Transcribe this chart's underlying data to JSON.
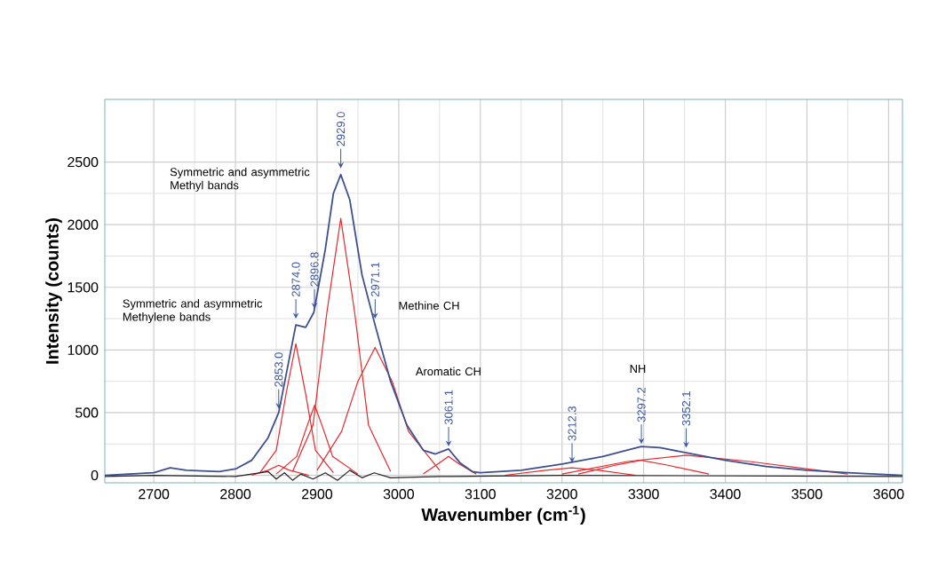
{
  "chart_data": {
    "type": "line",
    "xlabel": "Wavenumber (cm$^{-1}$)",
    "ylabel": "Intensity (counts)",
    "xlim": [
      2640,
      3617
    ],
    "ylim": [
      -60,
      3000
    ],
    "xticks": [
      2700,
      2800,
      2900,
      3000,
      3100,
      3200,
      3300,
      3400,
      3500,
      3600
    ],
    "yticks": [
      0,
      500,
      1000,
      1500,
      2000,
      2500
    ],
    "grid": true,
    "marker": "none",
    "line_style": "solid",
    "series": [
      {
        "color": "#e8262a",
        "x": [
          2820,
          2840,
          2853,
          2866,
          2890
        ],
        "values": [
          0,
          40,
          80,
          40,
          0
        ]
      },
      {
        "color": "#e8262a",
        "x": [
          2830,
          2850,
          2862,
          2874,
          2886,
          2898,
          2920
        ],
        "values": [
          20,
          200,
          650,
          1050,
          650,
          200,
          20
        ]
      },
      {
        "color": "#e8262a",
        "x": [
          2850,
          2875,
          2887,
          2897,
          2907,
          2919,
          2950
        ],
        "values": [
          10,
          150,
          380,
          560,
          380,
          150,
          10
        ]
      },
      {
        "color": "#e8262a",
        "x": [
          2870,
          2895,
          2912,
          2929,
          2946,
          2963,
          2990
        ],
        "values": [
          30,
          400,
          1300,
          2050,
          1300,
          400,
          30
        ]
      },
      {
        "color": "#e8262a",
        "x": [
          2900,
          2930,
          2950,
          2971,
          2992,
          3012,
          3050
        ],
        "values": [
          40,
          350,
          750,
          1020,
          750,
          350,
          40
        ]
      },
      {
        "color": "#e8262a",
        "x": [
          3030,
          3048,
          3061,
          3074,
          3095
        ],
        "values": [
          10,
          90,
          150,
          90,
          10
        ]
      },
      {
        "color": "#e8262a",
        "x": [
          3130,
          3180,
          3212,
          3245,
          3290
        ],
        "values": [
          0,
          40,
          60,
          40,
          0
        ]
      },
      {
        "color": "#e8262a",
        "x": [
          3220,
          3265,
          3297,
          3330,
          3380
        ],
        "values": [
          10,
          80,
          120,
          80,
          10
        ]
      },
      {
        "color": "#e8262a",
        "x": [
          3200,
          3280,
          3352,
          3430,
          3550
        ],
        "values": [
          10,
          110,
          160,
          110,
          10
        ]
      },
      {
        "color": "#222222",
        "x": [
          2640,
          2700,
          2800,
          2840,
          2850,
          2860,
          2870,
          2880,
          2895,
          2910,
          2925,
          2940,
          2955,
          2970,
          2990,
          3050,
          3200,
          3617
        ],
        "values": [
          -10,
          0,
          -10,
          30,
          -30,
          20,
          -40,
          10,
          -30,
          20,
          -40,
          40,
          -20,
          20,
          -20,
          -10,
          0,
          -10
        ]
      },
      {
        "color": "#3d4f8f",
        "x": [
          2640,
          2700,
          2720,
          2740,
          2780,
          2800,
          2820,
          2840,
          2853,
          2865,
          2874,
          2886,
          2896,
          2910,
          2920,
          2929,
          2940,
          2955,
          2971,
          2990,
          3010,
          3030,
          3045,
          3061,
          3075,
          3090,
          3100,
          3150,
          3200,
          3250,
          3297,
          3320,
          3352,
          3400,
          3450,
          3500,
          3550,
          3617
        ],
        "values": [
          0,
          20,
          60,
          40,
          30,
          50,
          120,
          300,
          500,
          900,
          1200,
          1180,
          1300,
          1800,
          2250,
          2400,
          2200,
          1600,
          1200,
          750,
          400,
          200,
          170,
          210,
          100,
          30,
          20,
          40,
          90,
          150,
          230,
          220,
          180,
          120,
          70,
          40,
          20,
          0
        ]
      }
    ],
    "annotations": [
      "Symmetric and asymmetric Methyl bands",
      "Symmetric and asymmetric Methylene bands",
      "Methine CH",
      "Aromatic CH",
      "NH",
      {
        "text": "2853.0",
        "x": 2853,
        "y": 530
      },
      {
        "text": "2874.0",
        "x": 2874,
        "y": 1250
      },
      {
        "text": "2896.8",
        "x": 2896.8,
        "y": 1330
      },
      {
        "text": "2929.0",
        "x": 2929,
        "y": 2450
      },
      {
        "text": "2971.1",
        "x": 2971.1,
        "y": 1250
      },
      {
        "text": "3061.1",
        "x": 3061.1,
        "y": 230
      },
      {
        "text": "3212.3",
        "x": 3212.3,
        "y": 100
      },
      {
        "text": "3297.2",
        "x": 3297.2,
        "y": 250
      },
      {
        "text": "3352.1",
        "x": 3352.1,
        "y": 220
      }
    ]
  }
}
